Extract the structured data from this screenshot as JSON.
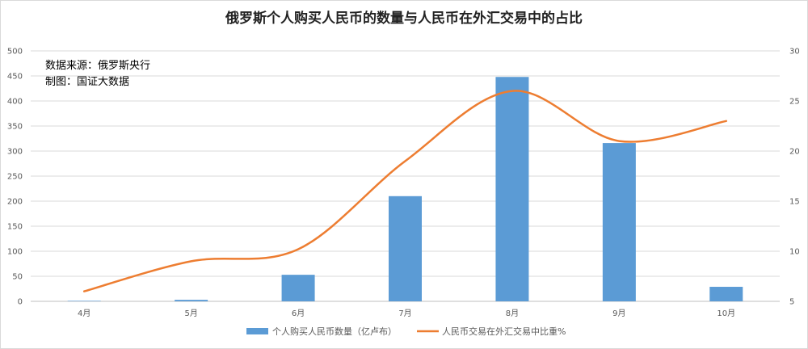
{
  "chart_data": {
    "type": "bar",
    "title": "俄罗斯个人购买人民币的数量与人民币在外汇交易中的占比",
    "annotations": [
      "数据来源：俄罗斯央行",
      "制图：国证大数据"
    ],
    "categories": [
      "4月",
      "5月",
      "6月",
      "7月",
      "8月",
      "9月",
      "10月"
    ],
    "left_axis": {
      "ylim": [
        0,
        500
      ],
      "ticks": [
        0,
        50,
        100,
        150,
        200,
        250,
        300,
        350,
        400,
        450,
        500
      ]
    },
    "right_axis": {
      "ylim": [
        5,
        30
      ],
      "ticks": [
        5,
        10,
        15,
        20,
        25,
        30
      ]
    },
    "series": [
      {
        "name": "个人购买人民币数量（亿卢布）",
        "type": "bar",
        "axis": "left",
        "color": "#5b9bd5",
        "values": [
          1,
          3,
          53,
          210,
          448,
          316,
          29
        ]
      },
      {
        "name": "人民币交易在外汇交易中比重%",
        "type": "line",
        "axis": "right",
        "color": "#ed7d31",
        "values": [
          6,
          9,
          10.2,
          19,
          26,
          21,
          23
        ]
      }
    ],
    "grid": true,
    "legend_position": "bottom"
  }
}
